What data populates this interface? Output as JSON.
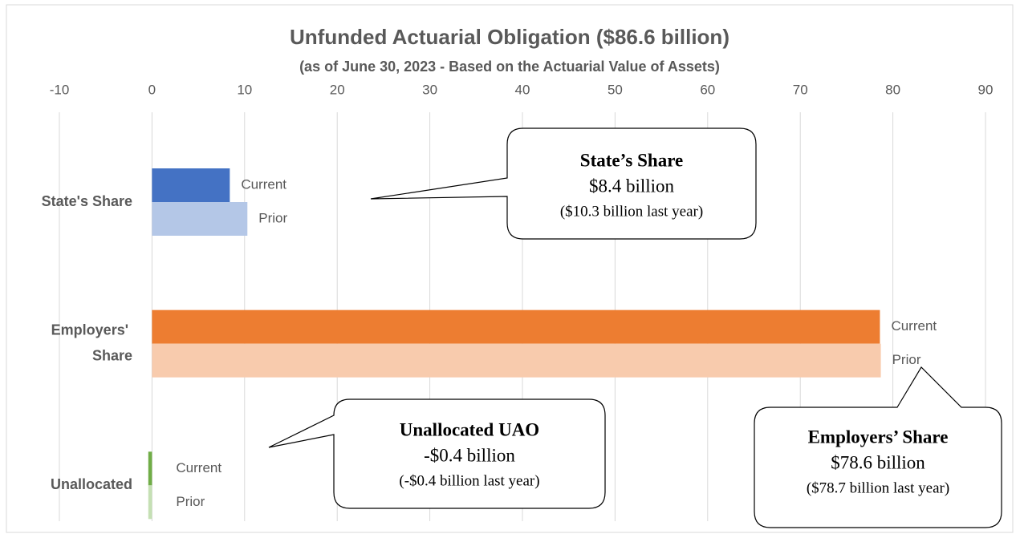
{
  "chart_data": {
    "type": "bar",
    "orientation": "horizontal",
    "title": "Unfunded Actuarial Obligation ($86.6 billion)",
    "subtitle": "(as of June 30, 2023 - Based on the Actuarial Value of Assets)",
    "categories": [
      "State's Share",
      "Employers' Share",
      "Unallocated"
    ],
    "series": [
      {
        "name": "Current",
        "values": [
          8.4,
          78.6,
          -0.4
        ],
        "colors": [
          "#4472c4",
          "#ed7d31",
          "#70ad47"
        ]
      },
      {
        "name": "Prior",
        "values": [
          10.3,
          78.7,
          -0.4
        ],
        "colors": [
          "#b4c7e7",
          "#f8cbad",
          "#c5e0b4"
        ]
      }
    ],
    "xlim": [
      -10,
      90
    ],
    "xticks": [
      -10,
      0,
      10,
      20,
      30,
      40,
      50,
      60,
      70,
      80,
      90
    ],
    "grid": true,
    "annotations": [
      {
        "lines": [
          "State’s Share",
          "$8.4 billion",
          "($10.3 billion last year)"
        ]
      },
      {
        "lines": [
          "Employers’ Share",
          "$78.6 billion",
          "($78.7 billion last year)"
        ]
      },
      {
        "lines": [
          "Unallocated UAO",
          "-$0.4 billion",
          "(-$0.4 billion last year)"
        ]
      }
    ]
  }
}
